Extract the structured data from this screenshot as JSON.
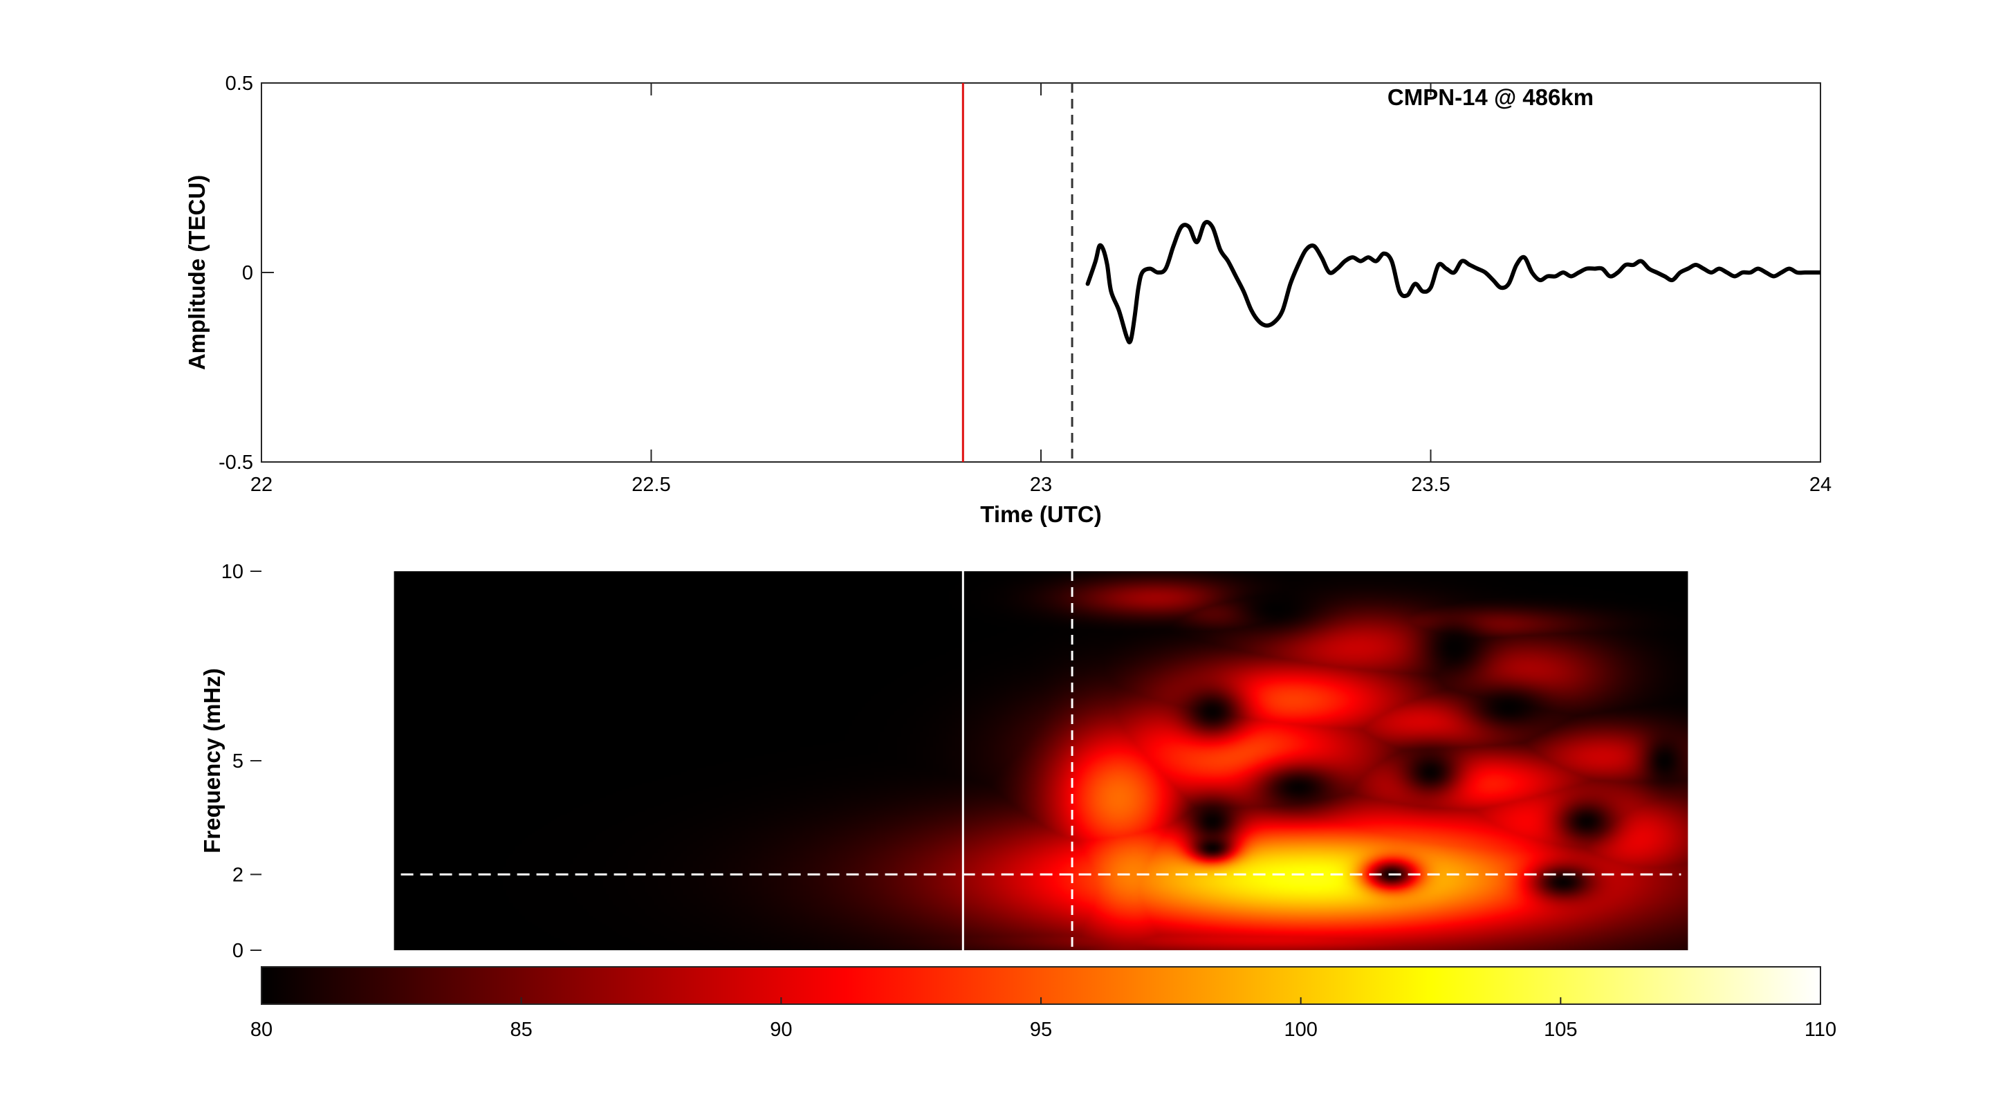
{
  "chart_data": [
    {
      "type": "line",
      "title": "CMPN-14 @  486km",
      "xlabel": "Time (UTC)",
      "ylabel": "Amplitude (TECU)",
      "xlim": [
        22,
        24
      ],
      "ylim": [
        -0.5,
        0.5
      ],
      "xticks": [
        22,
        22.5,
        23,
        23.5,
        24
      ],
      "xtick_labels": [
        "22",
        "22.5",
        "23",
        "23.5",
        "24"
      ],
      "yticks": [
        -0.5,
        0,
        0.5
      ],
      "ytick_labels": [
        "-0.5",
        "0",
        "0.5"
      ],
      "grid": false,
      "line_color": "#000000",
      "vlines": [
        {
          "x": 22.9,
          "style": "solid",
          "color": "#e01010"
        },
        {
          "x": 23.04,
          "style": "dashed",
          "color": "#333333"
        }
      ],
      "x": [
        23.06,
        23.07,
        23.075,
        23.08,
        23.085,
        23.09,
        23.1,
        23.11,
        23.115,
        23.12,
        23.125,
        23.13,
        23.14,
        23.15,
        23.16,
        23.17,
        23.18,
        23.19,
        23.2,
        23.21,
        23.22,
        23.23,
        23.24,
        23.25,
        23.26,
        23.27,
        23.28,
        23.29,
        23.3,
        23.31,
        23.32,
        23.33,
        23.34,
        23.35,
        23.36,
        23.37,
        23.38,
        23.39,
        23.4,
        23.41,
        23.42,
        23.43,
        23.44,
        23.45,
        23.46,
        23.47,
        23.48,
        23.49,
        23.5,
        23.51,
        23.52,
        23.53,
        23.54,
        23.55,
        23.56,
        23.57,
        23.58,
        23.59,
        23.6,
        23.61,
        23.62,
        23.63,
        23.64,
        23.65,
        23.66,
        23.67,
        23.68,
        23.69,
        23.7,
        23.71,
        23.72,
        23.73,
        23.74,
        23.75,
        23.76,
        23.77,
        23.78,
        23.79,
        23.8,
        23.81,
        23.82,
        23.83,
        23.84,
        23.85,
        23.86,
        23.87,
        23.88,
        23.89,
        23.9,
        23.91,
        23.92,
        23.93,
        23.94,
        23.95,
        23.96,
        23.97,
        23.98,
        23.99,
        24.0
      ],
      "y": [
        -0.03,
        0.03,
        0.07,
        0.06,
        0.02,
        -0.05,
        -0.1,
        -0.17,
        -0.18,
        -0.12,
        -0.04,
        0.0,
        0.01,
        0.0,
        0.01,
        0.07,
        0.12,
        0.12,
        0.08,
        0.13,
        0.12,
        0.06,
        0.03,
        -0.01,
        -0.05,
        -0.1,
        -0.13,
        -0.14,
        -0.13,
        -0.1,
        -0.03,
        0.02,
        0.06,
        0.07,
        0.04,
        0.0,
        0.01,
        0.03,
        0.04,
        0.03,
        0.04,
        0.03,
        0.05,
        0.03,
        -0.05,
        -0.06,
        -0.03,
        -0.05,
        -0.04,
        0.02,
        0.01,
        0.0,
        0.03,
        0.02,
        0.01,
        0.0,
        -0.02,
        -0.04,
        -0.03,
        0.02,
        0.04,
        0.0,
        -0.02,
        -0.01,
        -0.01,
        0.0,
        -0.01,
        0.0,
        0.01,
        0.01,
        0.01,
        -0.01,
        0.0,
        0.02,
        0.02,
        0.03,
        0.01,
        0.0,
        -0.01,
        -0.02,
        0.0,
        0.01,
        0.02,
        0.01,
        0.0,
        0.01,
        0.0,
        -0.01,
        0.0,
        0.0,
        0.01,
        0.0,
        -0.01,
        0.0,
        0.01,
        0.0,
        0.0,
        0.0,
        0.0
      ]
    },
    {
      "type": "heatmap",
      "xlabel": "",
      "ylabel": "Frequency (mHz)",
      "xlim": [
        22,
        24
      ],
      "ylim": [
        0,
        10
      ],
      "yticks": [
        0,
        2,
        5,
        10
      ],
      "ytick_labels": [
        "0",
        "2",
        "5",
        "10"
      ],
      "data_x_range": [
        22.17,
        23.83
      ],
      "background_color": "#000000",
      "vlines": [
        {
          "x": 22.9,
          "style": "solid",
          "color": "#ffffff"
        },
        {
          "x": 23.04,
          "style": "dashed",
          "color": "#ffffff"
        }
      ],
      "hlines": [
        {
          "y": 2,
          "style": "dashed",
          "color": "#ffffff"
        }
      ],
      "blobs": [
        {
          "x": 23.35,
          "y": 1.9,
          "sx": 0.28,
          "sy": 1.2,
          "v": 103
        },
        {
          "x": 23.12,
          "y": 2.0,
          "sx": 0.08,
          "sy": 1.4,
          "v": 97
        },
        {
          "x": 23.45,
          "y": 2.2,
          "sx": 0.22,
          "sy": 1.3,
          "v": 97
        },
        {
          "x": 23.1,
          "y": 4.0,
          "sx": 0.07,
          "sy": 1.5,
          "v": 96
        },
        {
          "x": 23.25,
          "y": 5.2,
          "sx": 0.14,
          "sy": 1.1,
          "v": 95
        },
        {
          "x": 23.32,
          "y": 6.6,
          "sx": 0.12,
          "sy": 0.8,
          "v": 94
        },
        {
          "x": 23.55,
          "y": 4.4,
          "sx": 0.12,
          "sy": 0.7,
          "v": 93
        },
        {
          "x": 23.66,
          "y": 3.4,
          "sx": 0.12,
          "sy": 0.9,
          "v": 92
        },
        {
          "x": 23.75,
          "y": 3.0,
          "sx": 0.08,
          "sy": 0.9,
          "v": 91
        },
        {
          "x": 23.5,
          "y": 6.0,
          "sx": 0.1,
          "sy": 0.6,
          "v": 90
        },
        {
          "x": 23.4,
          "y": 8.0,
          "sx": 0.1,
          "sy": 0.7,
          "v": 89
        },
        {
          "x": 23.62,
          "y": 7.3,
          "sx": 0.08,
          "sy": 0.7,
          "v": 88
        },
        {
          "x": 23.72,
          "y": 5.1,
          "sx": 0.08,
          "sy": 0.6,
          "v": 89
        },
        {
          "x": 23.15,
          "y": 9.3,
          "sx": 0.08,
          "sy": 0.35,
          "v": 87
        },
        {
          "x": 23.25,
          "y": 8.9,
          "sx": 0.05,
          "sy": 0.3,
          "v": 86
        },
        {
          "x": 23.55,
          "y": 8.6,
          "sx": 0.1,
          "sy": 0.3,
          "v": 86
        },
        {
          "x": 23.3,
          "y": 0.3,
          "sx": 0.25,
          "sy": 0.35,
          "v": 90
        }
      ],
      "holes": [
        {
          "x": 23.22,
          "y": 6.3,
          "sx": 0.03,
          "sy": 0.5
        },
        {
          "x": 23.33,
          "y": 4.3,
          "sx": 0.04,
          "sy": 0.45
        },
        {
          "x": 23.22,
          "y": 3.4,
          "sx": 0.025,
          "sy": 0.45
        },
        {
          "x": 23.3,
          "y": 9.0,
          "sx": 0.05,
          "sy": 0.5
        },
        {
          "x": 23.5,
          "y": 4.7,
          "sx": 0.03,
          "sy": 0.5
        },
        {
          "x": 23.6,
          "y": 6.4,
          "sx": 0.04,
          "sy": 0.45
        },
        {
          "x": 23.7,
          "y": 3.4,
          "sx": 0.03,
          "sy": 0.45
        },
        {
          "x": 23.53,
          "y": 8.0,
          "sx": 0.03,
          "sy": 0.6
        },
        {
          "x": 23.45,
          "y": 2.0,
          "sx": 0.025,
          "sy": 0.3
        },
        {
          "x": 23.22,
          "y": 2.7,
          "sx": 0.02,
          "sy": 0.25
        },
        {
          "x": 23.67,
          "y": 1.8,
          "sx": 0.03,
          "sy": 0.35
        },
        {
          "x": 23.8,
          "y": 5.0,
          "sx": 0.02,
          "sy": 0.5
        }
      ]
    },
    {
      "type": "colorbar",
      "clim": [
        80,
        110
      ],
      "ticks": [
        80,
        85,
        90,
        95,
        100,
        105,
        110
      ],
      "tick_labels": [
        "80",
        "85",
        "90",
        "95",
        "100",
        "105",
        "110"
      ],
      "colormap": "hot"
    }
  ]
}
